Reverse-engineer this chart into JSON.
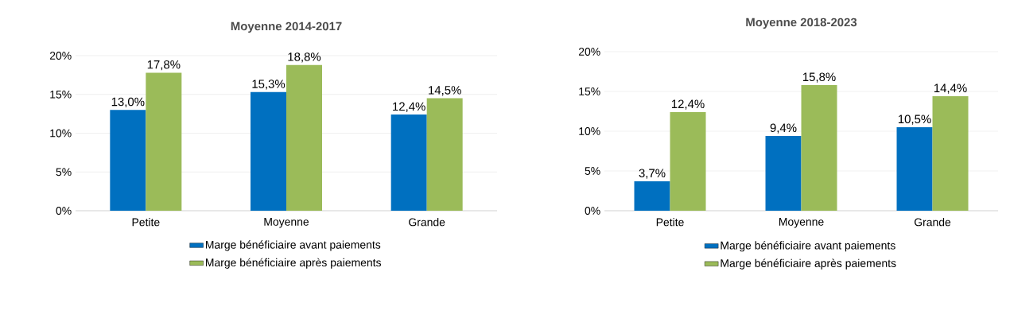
{
  "chart_data": [
    {
      "type": "bar",
      "title": "Moyenne 2014-2017",
      "categories": [
        "Petite",
        "Moyenne",
        "Grande"
      ],
      "series": [
        {
          "name": "Marge bénéficiaire avant paiements",
          "color": "#0070c0",
          "values": [
            13.0,
            15.3,
            12.4
          ],
          "value_labels": [
            "13,0%",
            "15,3%",
            "12,4%"
          ]
        },
        {
          "name": "Marge bénéficiaire après paiements",
          "color": "#9bbb59",
          "values": [
            17.8,
            18.8,
            14.5
          ],
          "value_labels": [
            "17,8%",
            "18,8%",
            "14,5%"
          ]
        }
      ],
      "ylim": [
        0,
        20
      ],
      "yticks": [
        {
          "value": 0,
          "label": "0%"
        },
        {
          "value": 5,
          "label": "5%"
        },
        {
          "value": 10,
          "label": "10%"
        },
        {
          "value": 15,
          "label": "15%"
        },
        {
          "value": 20,
          "label": "20%"
        }
      ],
      "grid": "y",
      "legend": "bottom"
    },
    {
      "type": "bar",
      "title": "Moyenne 2018-2023",
      "categories": [
        "Petite",
        "Moyenne",
        "Grande"
      ],
      "series": [
        {
          "name": "Marge bénéficiaire avant paiements",
          "color": "#0070c0",
          "values": [
            3.7,
            9.4,
            10.5
          ],
          "value_labels": [
            "3,7%",
            "9,4%",
            "10,5%"
          ]
        },
        {
          "name": "Marge bénéficiaire après paiements",
          "color": "#9bbb59",
          "values": [
            12.4,
            15.8,
            14.4
          ],
          "value_labels": [
            "12,4%",
            "15,8%",
            "14,4%"
          ]
        }
      ],
      "ylim": [
        0,
        20
      ],
      "yticks": [
        {
          "value": 0,
          "label": "0%"
        },
        {
          "value": 5,
          "label": "5%"
        },
        {
          "value": 10,
          "label": "10%"
        },
        {
          "value": 15,
          "label": "15%"
        },
        {
          "value": 20,
          "label": "20%"
        }
      ],
      "grid": "y",
      "legend": "bottom"
    }
  ]
}
